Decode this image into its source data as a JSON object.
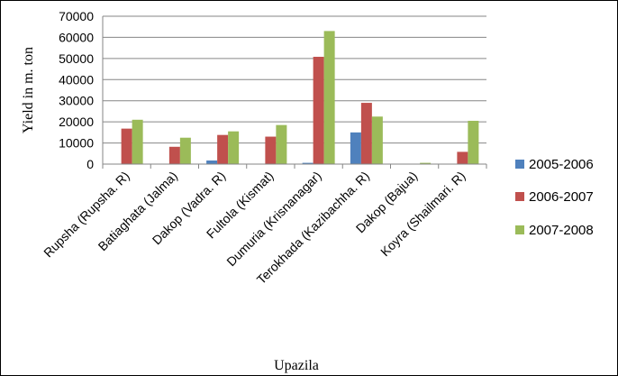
{
  "chart_data": {
    "type": "bar",
    "title": "",
    "xlabel": "Upazila",
    "ylabel": "Yield in m. ton",
    "ylim": [
      0,
      70000
    ],
    "yticks": [
      "0",
      "10000",
      "20000",
      "30000",
      "40000",
      "50000",
      "60000",
      "70000"
    ],
    "grid": true,
    "legend_position": "right",
    "categories": [
      "Rupsha (Rupsha. R)",
      "Batiaghata (Jalma)",
      "Dakop (Vadra. R)",
      "Fultola (Kismat)",
      "Dumuria (Krisnanagar)",
      "Terokhada (Kazibachha. R)",
      "Dakop (Bajua)",
      "Koyra (Shailmari. R)"
    ],
    "series": [
      {
        "name": "2005-2006",
        "color": "#4f81bd",
        "values": [
          0,
          0,
          1700,
          0,
          600,
          15000,
          0,
          0
        ]
      },
      {
        "name": "2006-2007",
        "color": "#c0504d",
        "values": [
          16800,
          8200,
          13800,
          13000,
          50800,
          29000,
          0,
          5800
        ]
      },
      {
        "name": "2007-2008",
        "color": "#9bbb59",
        "values": [
          21000,
          12500,
          15500,
          18500,
          63000,
          22500,
          600,
          20500
        ]
      }
    ]
  }
}
